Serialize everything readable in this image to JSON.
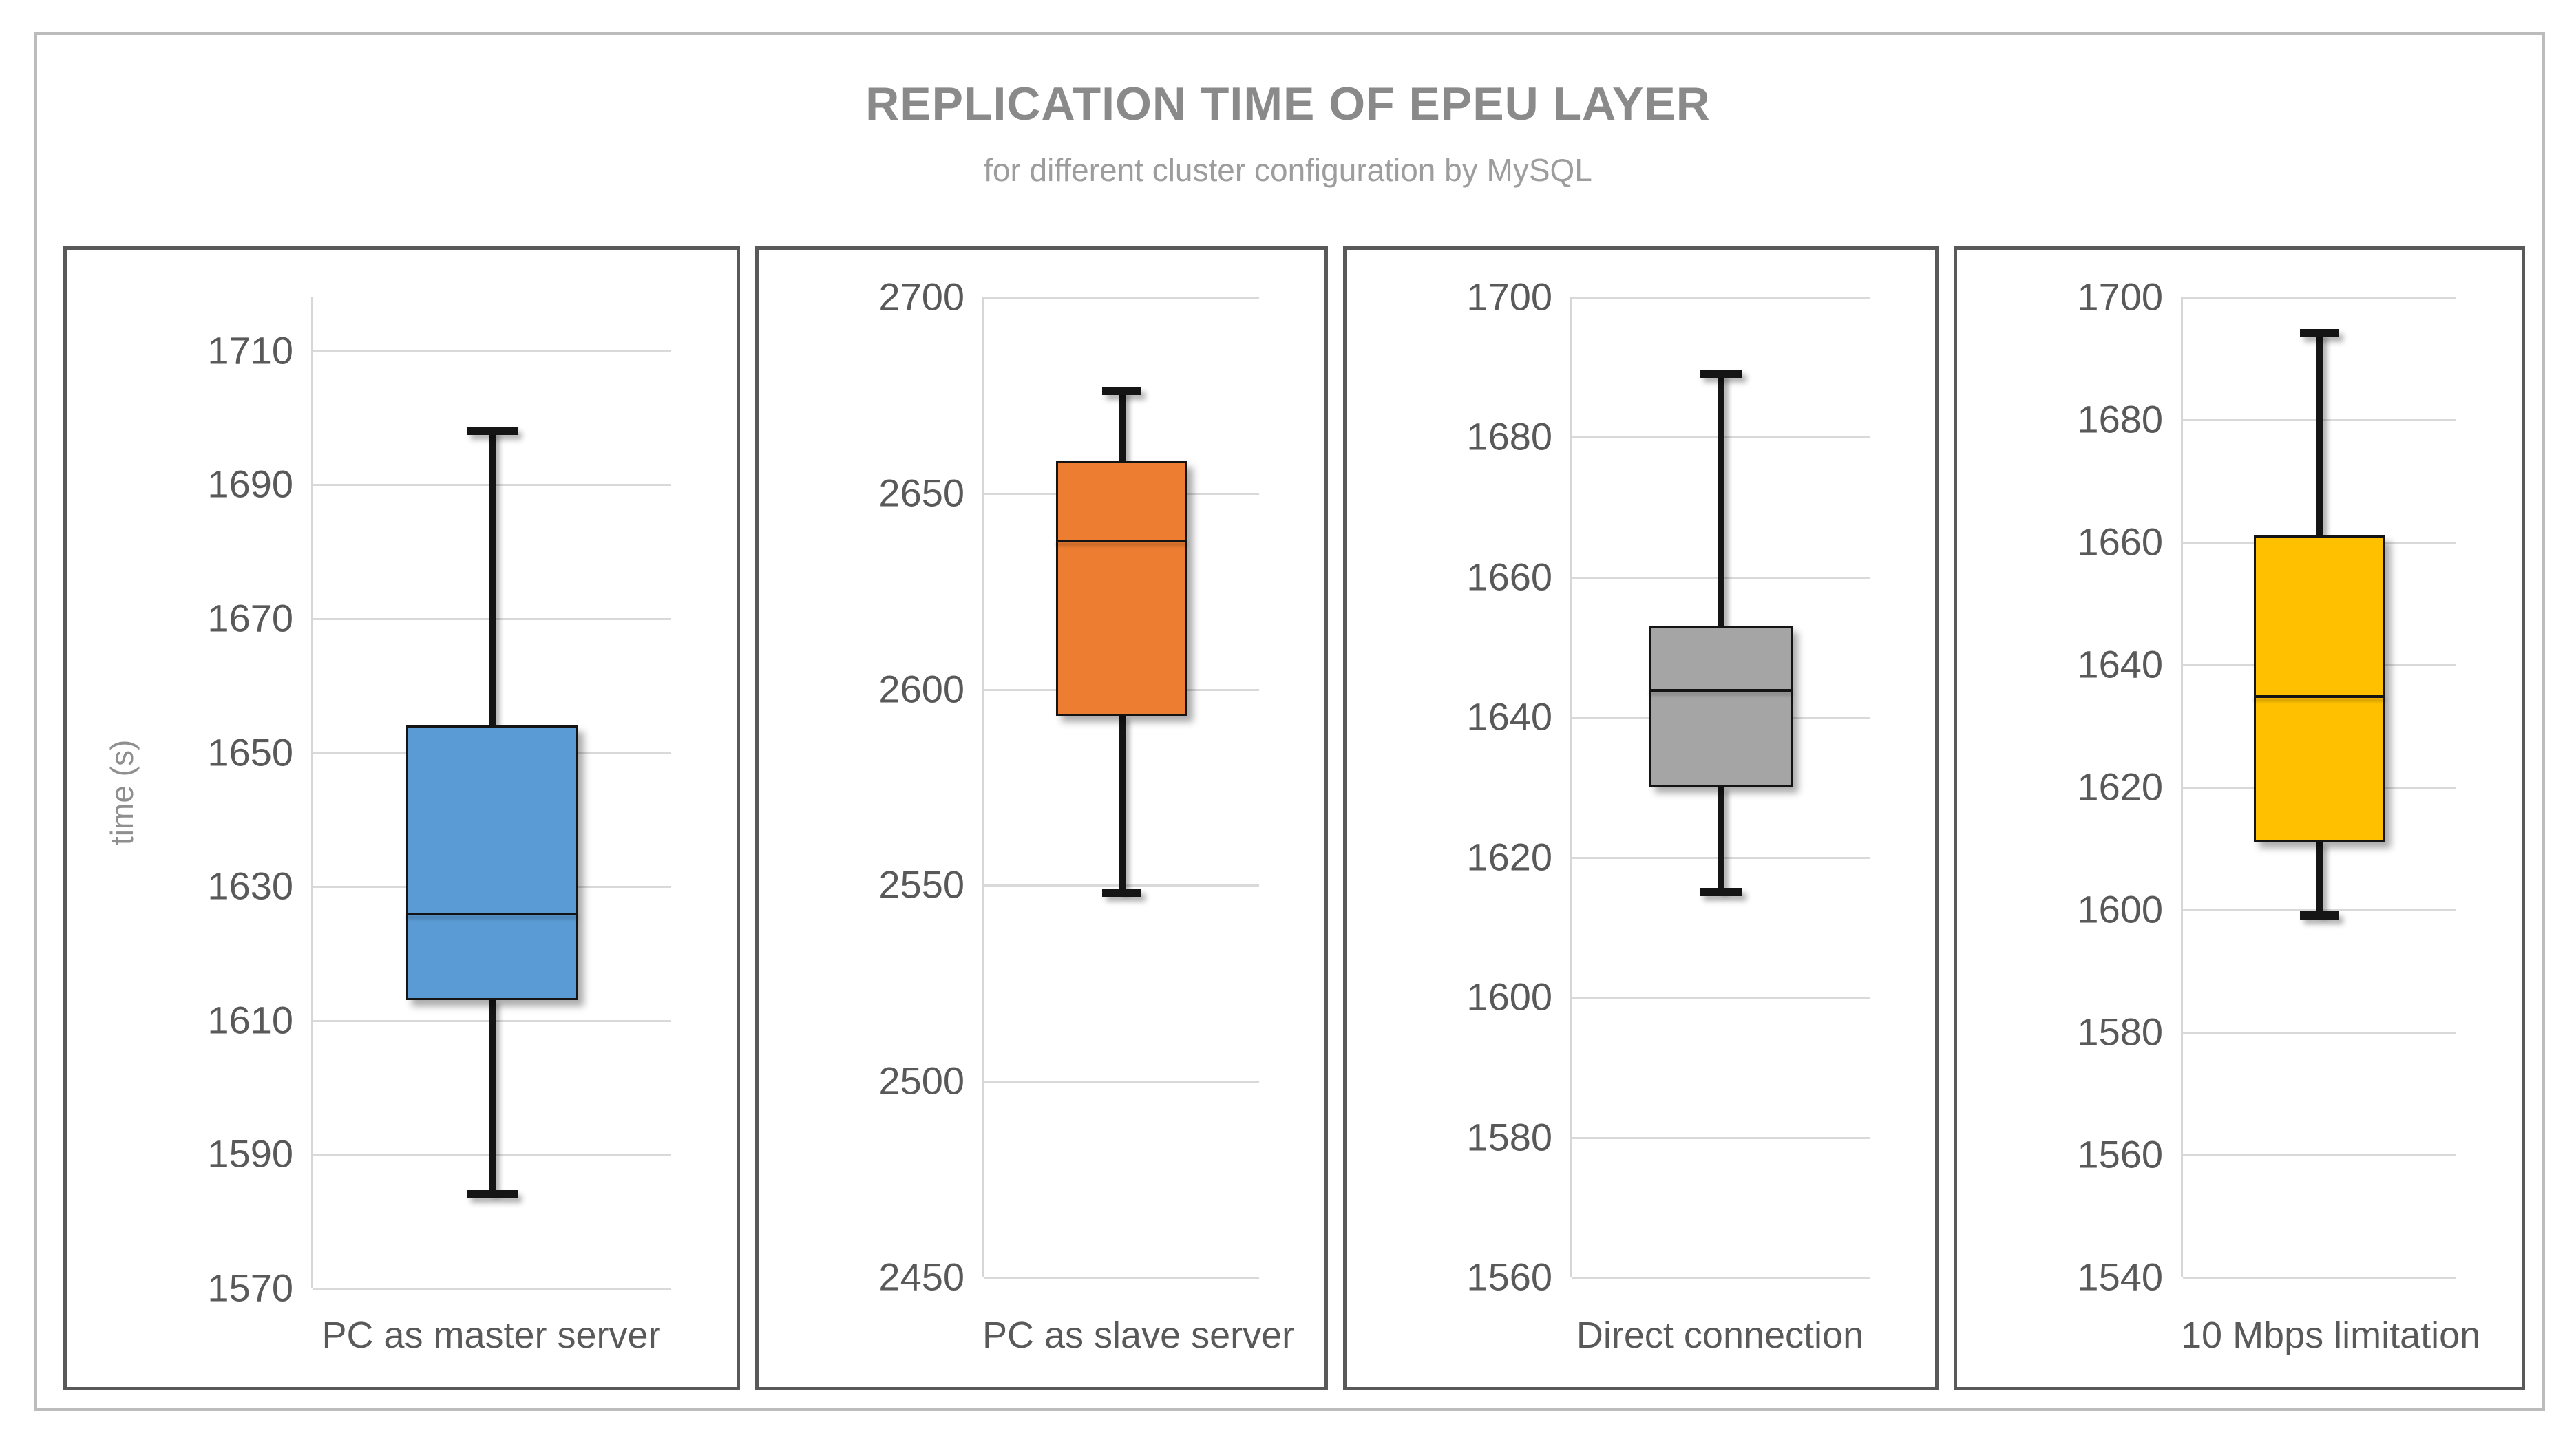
{
  "header": {
    "title": "REPLICATION TIME OF EPEU LAYER",
    "subtitle": "for different cluster configuration by MySQL"
  },
  "colors": {
    "blue": "#5B9BD5",
    "orange": "#ED7D31",
    "gray": "#A5A5A5",
    "gold": "#FFC000",
    "gridline": "#d9d9d9",
    "axis_text": "#595959",
    "title_text": "#8a8a8a",
    "panel_border": "#595959"
  },
  "chart_data": {
    "type": "boxplot",
    "title": "REPLICATION TIME OF EPEU LAYER",
    "subtitle": "for different cluster configuration by MySQL",
    "ylabel": "time (s)",
    "xlabel": "",
    "grid": true,
    "legend": false,
    "layout": "4 side-by-side panels, one box-and-whisker per panel, independent y axes",
    "series": [
      {
        "name": "PC as master server",
        "color": "#5B9BD5",
        "whisker_low": 1584,
        "q1": 1613,
        "median": 1626,
        "q3": 1654,
        "whisker_high": 1698,
        "axis": {
          "ymin": 1570,
          "ymax": 1718,
          "tick_step": 20,
          "ticks": [
            1710,
            1690,
            1670,
            1650,
            1630,
            1610,
            1590,
            1570
          ]
        }
      },
      {
        "name": "PC as slave server",
        "color": "#ED7D31",
        "whisker_low": 2548,
        "q1": 2593,
        "median": 2638,
        "q3": 2658,
        "whisker_high": 2676,
        "axis": {
          "ymin": 2450,
          "ymax": 2700,
          "tick_step": 50,
          "ticks": [
            2700,
            2650,
            2600,
            2550,
            2500,
            2450
          ]
        }
      },
      {
        "name": "Direct connection",
        "color": "#A5A5A5",
        "whisker_low": 1615,
        "q1": 1630,
        "median": 1644,
        "q3": 1653,
        "whisker_high": 1689,
        "axis": {
          "ymin": 1560,
          "ymax": 1700,
          "tick_step": 20,
          "ticks": [
            1700,
            1680,
            1660,
            1640,
            1620,
            1600,
            1580,
            1560
          ]
        }
      },
      {
        "name": "10 Mbps limitation",
        "color": "#FFC000",
        "whisker_low": 1599,
        "q1": 1611,
        "median": 1635,
        "q3": 1661,
        "whisker_high": 1694,
        "axis": {
          "ymin": 1540,
          "ymax": 1700,
          "tick_step": 20,
          "ticks": [
            1700,
            1680,
            1660,
            1640,
            1620,
            1600,
            1580,
            1560,
            1540
          ]
        }
      }
    ]
  }
}
